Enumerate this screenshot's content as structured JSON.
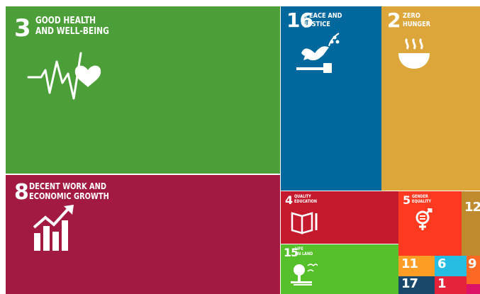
{
  "chart_data": {
    "type": "treemap",
    "tiles": [
      {
        "goal": "3",
        "label": "GOOD HEALTH\nAND WELL-BEING",
        "color": "#4C9F38",
        "icon": "heartbeat-icon"
      },
      {
        "goal": "8",
        "label": "DECENT WORK AND\nECONOMIC GROWTH",
        "color": "#A21942",
        "icon": "growth-chart-icon"
      },
      {
        "goal": "16",
        "label": "PEACE AND\nJUSTICE",
        "color": "#00689D",
        "icon": "dove-gavel-icon"
      },
      {
        "goal": "2",
        "label": "ZERO\nHUNGER",
        "color": "#DDA63A",
        "icon": "bowl-icon"
      },
      {
        "goal": "4",
        "label": "QUALITY\nEDUCATION",
        "color": "#C5192D",
        "icon": "book-icon"
      },
      {
        "goal": "5",
        "label": "GENDER\nEQUALITY",
        "color": "#FF3A21",
        "icon": "gender-icon"
      },
      {
        "goal": "12",
        "label": "",
        "color": "#BF8B2E",
        "icon": ""
      },
      {
        "goal": "15",
        "label": "LIFE\nON LAND",
        "color": "#56C02B",
        "icon": "tree-icon"
      },
      {
        "goal": "11",
        "label": "",
        "color": "#FD9D24",
        "icon": ""
      },
      {
        "goal": "6",
        "label": "",
        "color": "#26BDE2",
        "icon": ""
      },
      {
        "goal": "9",
        "label": "",
        "color": "#FD6925",
        "icon": ""
      },
      {
        "goal": "17",
        "label": "",
        "color": "#19486A",
        "icon": ""
      },
      {
        "goal": "1",
        "label": "",
        "color": "#E5243B",
        "icon": ""
      },
      {
        "goal": "",
        "label": "",
        "color": "#DD1367",
        "icon": ""
      }
    ]
  }
}
